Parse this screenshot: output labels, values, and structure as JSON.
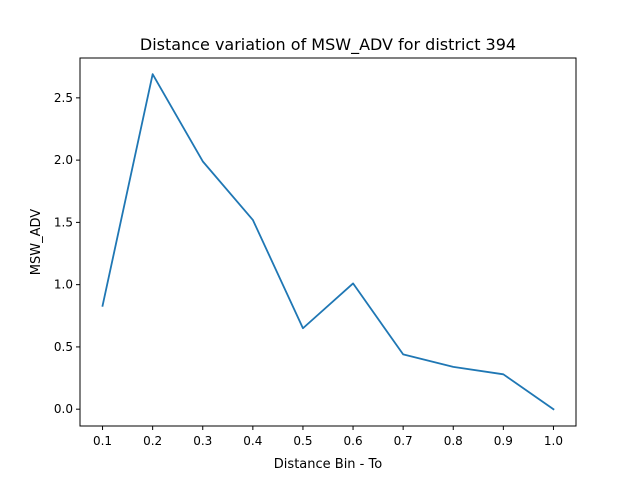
{
  "chart_data": {
    "type": "line",
    "title": "Distance variation of MSW_ADV for district 394",
    "xlabel": "Distance Bin - To",
    "ylabel": "MSW_ADV",
    "x": [
      0.1,
      0.2,
      0.3,
      0.4,
      0.5,
      0.6,
      0.7,
      0.8,
      0.9,
      1.0
    ],
    "series": [
      {
        "values": [
          0.83,
          2.69,
          1.99,
          1.52,
          0.65,
          1.01,
          0.44,
          0.34,
          0.28,
          0.0
        ],
        "color": "#1f77b4"
      }
    ],
    "xlim": [
      0.055,
      1.045
    ],
    "ylim": [
      -0.135,
      2.82
    ],
    "xticks": [
      "0.1",
      "0.2",
      "0.3",
      "0.4",
      "0.5",
      "0.6",
      "0.7",
      "0.8",
      "0.9",
      "1.0"
    ],
    "yticks": [
      "0.0",
      "0.5",
      "1.0",
      "1.5",
      "2.0",
      "2.5"
    ],
    "grid": false
  }
}
